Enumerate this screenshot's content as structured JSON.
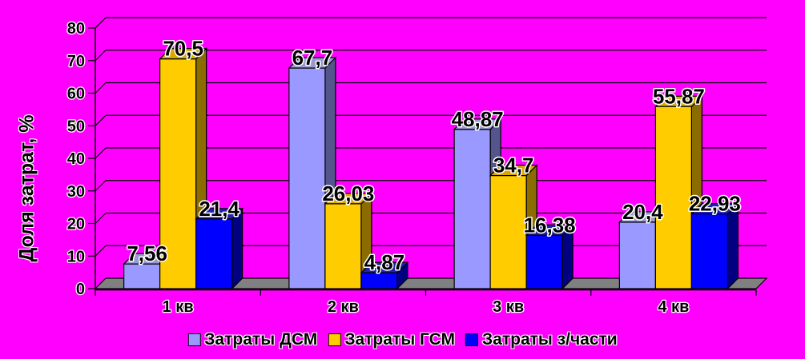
{
  "chart_data": {
    "type": "bar",
    "style": "3d-column",
    "title": "",
    "xlabel": "",
    "ylabel": "Доля затрат, %",
    "ylim": [
      0,
      80
    ],
    "ytick_step": 10,
    "ytick_labels": [
      "0",
      "10",
      "20",
      "30",
      "40",
      "50",
      "60",
      "70",
      "80"
    ],
    "grid": "horizontal",
    "legend_position": "bottom",
    "background_color": "#FF00FF",
    "floor_color": "#808080",
    "gridline_color": "#000000",
    "categories": [
      "1 кв",
      "2 кв",
      "3 кв",
      "4 кв"
    ],
    "series": [
      {
        "name": "Затраты ДСМ",
        "values": [
          7.56,
          67.7,
          48.87,
          20.4
        ],
        "labels": [
          "7,56",
          "67,7",
          "48,87",
          "20,4"
        ],
        "color": "#9999FF",
        "top_color": "#9A9AD0",
        "side_color": "#55558E"
      },
      {
        "name": "Затраты ГСМ",
        "values": [
          70.5,
          26.03,
          34.7,
          55.87
        ],
        "labels": [
          "70,5",
          "26,03",
          "34,7",
          "55,87"
        ],
        "color": "#FFCC00",
        "top_color": "#D9A900",
        "side_color": "#8A6C00"
      },
      {
        "name": "Затраты з/части",
        "values": [
          21.4,
          4.87,
          16.38,
          22.93
        ],
        "labels": [
          "21,4",
          "4,87",
          "16,38",
          "22,93"
        ],
        "color": "#0000FF",
        "top_color": "#2121B0",
        "side_color": "#000080"
      }
    ]
  }
}
